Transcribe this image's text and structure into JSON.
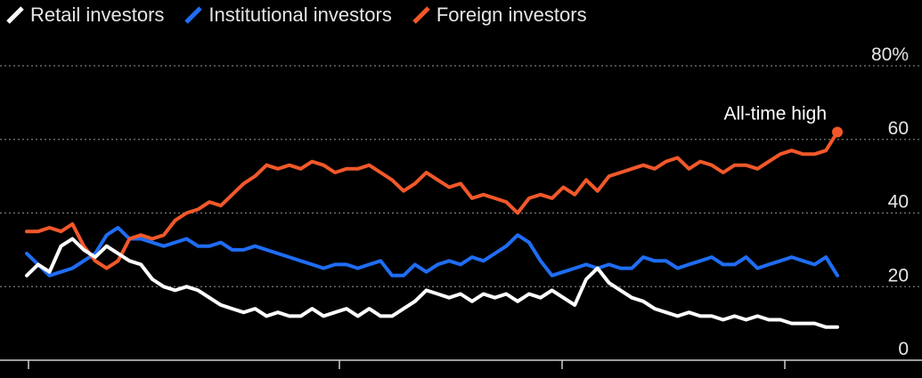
{
  "chart_data": {
    "type": "line",
    "title": "",
    "xlabel": "",
    "ylabel": "",
    "ylim": [
      0,
      80
    ],
    "y_ticks": [
      {
        "value": 80,
        "label": "80%"
      },
      {
        "value": 60,
        "label": "60"
      },
      {
        "value": 40,
        "label": "40"
      },
      {
        "value": 20,
        "label": "20"
      },
      {
        "value": 0,
        "label": "0"
      }
    ],
    "x_tick_count": 4,
    "grid": "horizontal dotted",
    "legend_position": "top-left",
    "annotation": {
      "text": "All-time high",
      "series": "Foreign investors"
    },
    "series": [
      {
        "name": "Retail investors",
        "color": "#ffffff",
        "values": [
          23,
          26,
          24,
          31,
          33,
          30,
          28,
          31,
          29,
          27,
          26,
          22,
          20,
          19,
          20,
          19,
          17,
          15,
          14,
          13,
          14,
          12,
          13,
          12,
          12,
          14,
          12,
          13,
          14,
          12,
          14,
          12,
          12,
          14,
          16,
          19,
          18,
          17,
          18,
          16,
          18,
          17,
          18,
          16,
          18,
          17,
          19,
          17,
          15,
          22,
          25,
          21,
          19,
          17,
          16,
          14,
          13,
          12,
          13,
          12,
          12,
          11,
          12,
          11,
          12,
          11,
          11,
          10,
          10,
          10,
          9,
          9
        ]
      },
      {
        "name": "Institutional investors",
        "color": "#1f6df5",
        "values": [
          29,
          26,
          23,
          24,
          25,
          27,
          29,
          34,
          36,
          33,
          33,
          32,
          31,
          32,
          33,
          31,
          31,
          32,
          30,
          30,
          31,
          30,
          29,
          28,
          27,
          26,
          25,
          26,
          26,
          25,
          26,
          27,
          23,
          23,
          26,
          24,
          26,
          27,
          26,
          28,
          27,
          29,
          31,
          34,
          32,
          27,
          23,
          24,
          25,
          26,
          25,
          26,
          25,
          25,
          28,
          27,
          27,
          25,
          26,
          27,
          28,
          26,
          26,
          28,
          25,
          26,
          27,
          28,
          27,
          26,
          28,
          23
        ]
      },
      {
        "name": "Foreign investors",
        "color": "#f2582a",
        "values": [
          35,
          35,
          36,
          35,
          37,
          31,
          27,
          25,
          27,
          33,
          34,
          33,
          34,
          38,
          40,
          41,
          43,
          42,
          45,
          48,
          50,
          53,
          52,
          53,
          52,
          54,
          53,
          51,
          52,
          52,
          53,
          51,
          49,
          46,
          48,
          51,
          49,
          47,
          48,
          44,
          45,
          44,
          43,
          40,
          44,
          45,
          44,
          47,
          45,
          49,
          46,
          50,
          51,
          52,
          53,
          52,
          54,
          55,
          52,
          54,
          53,
          51,
          53,
          53,
          52,
          54,
          56,
          57,
          56,
          56,
          57,
          62
        ]
      }
    ]
  }
}
